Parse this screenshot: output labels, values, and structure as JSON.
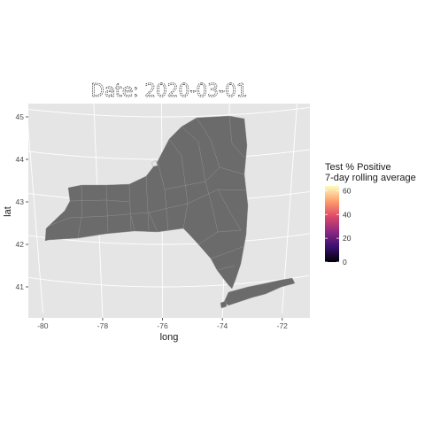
{
  "map": {
    "title": "Date: 2020-03-01",
    "x_axis_title": "long",
    "y_axis_title": "lat",
    "x_ticks": [
      {
        "value": -80,
        "label": "-80"
      },
      {
        "value": -78,
        "label": "-78"
      },
      {
        "value": -76,
        "label": "-76"
      },
      {
        "value": -74,
        "label": "-74"
      },
      {
        "value": -72,
        "label": "-72"
      }
    ],
    "y_ticks": [
      {
        "value": 41,
        "label": "41"
      },
      {
        "value": 42,
        "label": "42"
      },
      {
        "value": 43,
        "label": "43"
      },
      {
        "value": 44,
        "label": "44"
      },
      {
        "value": 45,
        "label": "45"
      }
    ],
    "panel_background": "#e5e5e5",
    "gridline_color": "#ffffff",
    "region_fill": "#6b6b6b",
    "region_border": "#999999",
    "region_name": "New York State counties"
  },
  "legend": {
    "title_line1": "Test % Positive",
    "title_line2": "7-day rolling average",
    "ticks": [
      {
        "value": 0,
        "label": "0"
      },
      {
        "value": 20,
        "label": "20"
      },
      {
        "value": 40,
        "label": "40"
      },
      {
        "value": 60,
        "label": "60"
      }
    ],
    "range": [
      0,
      64
    ],
    "colors": [
      "#000004",
      "#3b0f70",
      "#8c2981",
      "#de4968",
      "#fe9f6d",
      "#fcfdbf"
    ],
    "palette": "magma"
  }
}
